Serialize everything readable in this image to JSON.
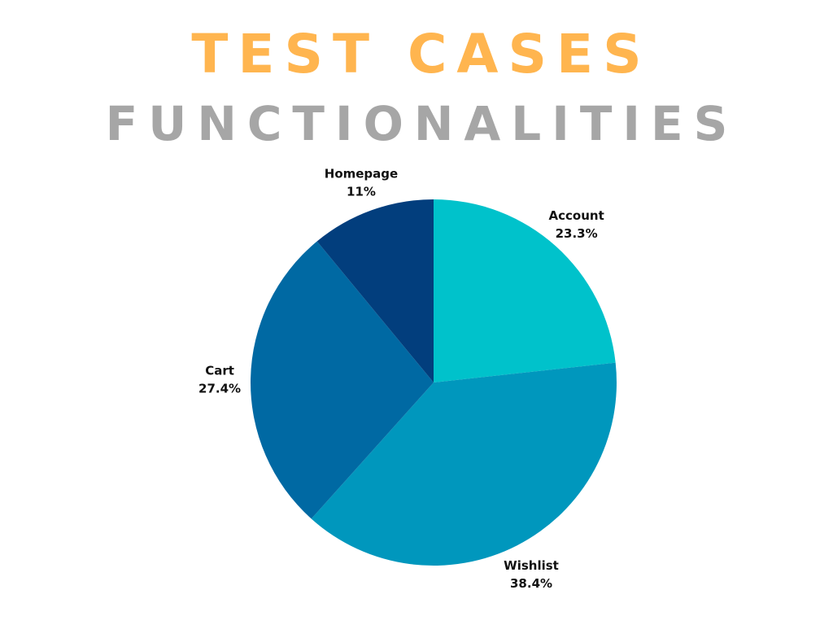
{
  "colors": {
    "title": "#FFB54F",
    "subtitle": "#A6A6A6",
    "label_text": "#111111"
  },
  "chart_data": {
    "type": "pie",
    "title": "TEST CASES",
    "subtitle": "FUNCTIONALITIES",
    "legend": "none",
    "slices": [
      {
        "label": "Account",
        "value": 23.3,
        "value_label": "23.3%",
        "color": "#00C2CB"
      },
      {
        "label": "Wishlist",
        "value": 38.4,
        "value_label": "38.4%",
        "color": "#0097BD"
      },
      {
        "label": "Cart",
        "value": 27.4,
        "value_label": "27.4%",
        "color": "#0069A3"
      },
      {
        "label": "Homepage",
        "value": 11,
        "value_label": "11%",
        "color": "#023E7D"
      }
    ]
  }
}
